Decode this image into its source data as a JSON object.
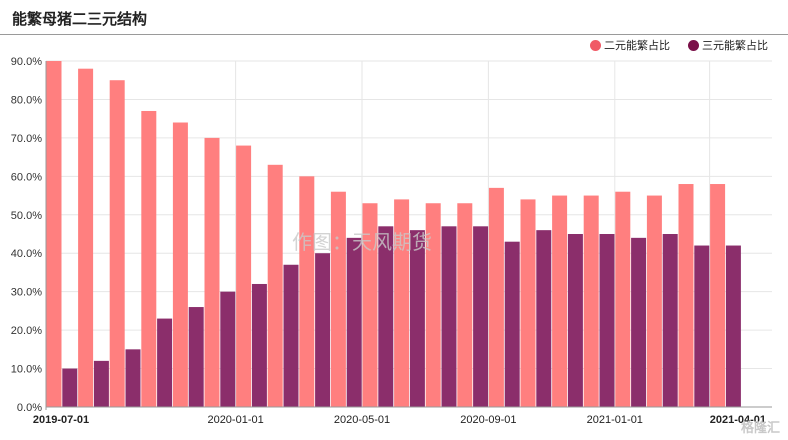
{
  "title": "能繁母猪二三元结构",
  "colors": {
    "series1": "#FF7F7F",
    "series2": "#8B2E6B",
    "legend1": "#F05A66",
    "legend2": "#7A1048",
    "grid": "#e6e6e6",
    "axis": "#9a9a9a"
  },
  "chart_data": {
    "type": "bar",
    "categories": [
      "2019-07-01",
      "2019-08-01",
      "2019-09-01",
      "2019-10-01",
      "2019-11-01",
      "2019-12-01",
      "2020-01-01",
      "2020-02-01",
      "2020-03-01",
      "2020-04-01",
      "2020-05-01",
      "2020-06-01",
      "2020-07-01",
      "2020-08-01",
      "2020-09-01",
      "2020-10-01",
      "2020-11-01",
      "2020-12-01",
      "2021-01-01",
      "2021-02-01",
      "2021-03-01",
      "2021-04-01"
    ],
    "x_tick_labels": [
      "2019-07-01",
      "2020-01-01",
      "2020-05-01",
      "2020-09-01",
      "2021-01-01",
      "2021-04-01"
    ],
    "series": [
      {
        "name": "二元能繁占比",
        "values": [
          90,
          88,
          85,
          77,
          74,
          70,
          68,
          63,
          60,
          56,
          53,
          54,
          53,
          53,
          57,
          54,
          55,
          55,
          56,
          55,
          58,
          58
        ]
      },
      {
        "name": "三元能繁占比",
        "values": [
          10,
          12,
          15,
          23,
          26,
          30,
          32,
          37,
          40,
          44,
          47,
          46,
          47,
          47,
          43,
          46,
          45,
          45,
          44,
          45,
          42,
          42
        ]
      }
    ],
    "y_ticks": [
      "0.0%",
      "10.0%",
      "20.0%",
      "30.0%",
      "40.0%",
      "50.0%",
      "60.0%",
      "70.0%",
      "80.0%",
      "90.0%"
    ],
    "ylim": [
      0,
      90
    ],
    "legend_position": "top-right",
    "grid": true,
    "watermark": "作图：天风期货"
  },
  "logo_text": "格隆汇"
}
